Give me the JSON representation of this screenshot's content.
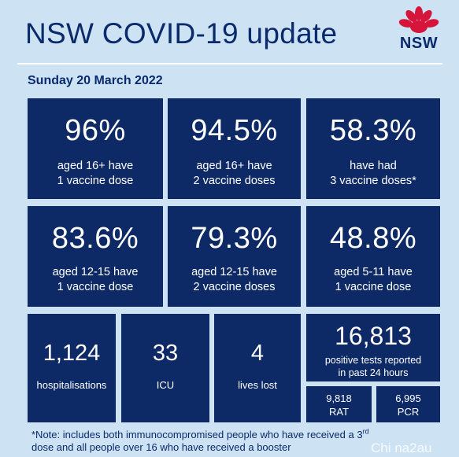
{
  "header": {
    "title": "NSW COVID-19 update",
    "logo_text": "NSW",
    "date": "Sunday 20 March 2022"
  },
  "stats": [
    {
      "value": "96%",
      "label": "aged 16+ have\n1 vaccine dose"
    },
    {
      "value": "94.5%",
      "label": "aged 16+ have\n2 vaccine doses"
    },
    {
      "value": "58.3%",
      "label": "have had\n3 vaccine doses*"
    },
    {
      "value": "83.6%",
      "label": "aged 12-15 have\n1 vaccine dose"
    },
    {
      "value": "79.3%",
      "label": "aged 12-15 have\n2 vaccine doses"
    },
    {
      "value": "48.8%",
      "label": "aged 5-11 have\n1 vaccine dose"
    }
  ],
  "bottom": {
    "hospitalisations": {
      "value": "1,124",
      "label": "hospitalisations"
    },
    "icu": {
      "value": "33",
      "label": "ICU"
    },
    "deaths": {
      "value": "4",
      "label": "lives lost"
    },
    "tests": {
      "value": "16,813",
      "label": "positive tests reported\nin past 24 hours"
    },
    "rat": {
      "value": "9,818",
      "label": "RAT"
    },
    "pcr": {
      "value": "6,995",
      "label": "PCR"
    }
  },
  "note": {
    "part1": "*Note: includes both immunocompromised people who have received a 3",
    "sup": "rd",
    "part2": "dose and all people over 16 who have received a booster"
  },
  "watermark": "Chi na2au",
  "colors": {
    "background": "#cde3f4",
    "card": "#0e2a66",
    "title": "#0b2a6b",
    "logo_red": "#d7153a"
  }
}
